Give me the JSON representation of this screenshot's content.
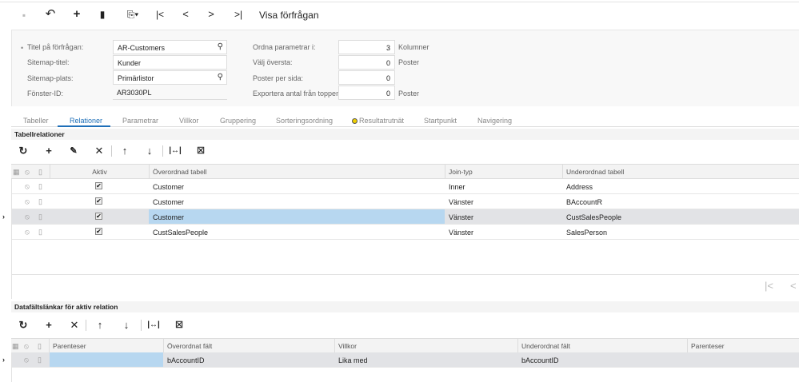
{
  "toolbar": {
    "buttons": [
      {
        "name": "save-icon",
        "glyph": "🖫",
        "disabled": true
      },
      {
        "name": "undo-icon",
        "glyph": "↶"
      },
      {
        "name": "add-icon",
        "glyph": "+"
      },
      {
        "name": "delete-icon",
        "glyph": "🗑"
      },
      {
        "name": "copy-paste-icon",
        "glyph": "⎘▾"
      },
      {
        "name": "first-record-icon",
        "glyph": "|<"
      },
      {
        "name": "previous-record-icon",
        "glyph": "<"
      },
      {
        "name": "next-record-icon",
        "glyph": ">"
      },
      {
        "name": "last-record-icon",
        "glyph": ">|"
      }
    ],
    "title": "Visa förfrågan"
  },
  "form": {
    "required_mark": "•",
    "title_label": "Titel på förfrågan:",
    "title_value": "AR-Customers",
    "sitemap_title_label": "Sitemap-titel:",
    "sitemap_title_value": "Kunder",
    "sitemap_location_label": "Sitemap-plats:",
    "sitemap_location_value": "Primärlistor",
    "screen_id_label": "Fönster-ID:",
    "screen_id_value": "AR3030PL",
    "arrange_label": "Ordna parametrar i:",
    "arrange_value": "3",
    "arrange_unit": "Kolumner",
    "select_top_label": "Välj översta:",
    "select_top_value": "0",
    "select_top_unit": "Poster",
    "per_page_label": "Poster per sida:",
    "per_page_value": "0",
    "export_label": "Exportera antal från toppen:",
    "export_value": "0",
    "export_unit": "Poster",
    "search_glyph": "⚲"
  },
  "tabs": [
    "Tabeller",
    "Relationer",
    "Parametrar",
    "Villkor",
    "Gruppering",
    "Sorteringsordning",
    "Resultatrutnät",
    "Startpunkt",
    "Navigering"
  ],
  "active_tab": "Relationer",
  "relations": {
    "title": "Tabellrelationer",
    "columns": [
      "Aktiv",
      "Överordnad tabell",
      "Join-typ",
      "Underordnad tabell"
    ],
    "rows": [
      {
        "active": true,
        "parent": "Customer",
        "join": "Inner",
        "child": "Address"
      },
      {
        "active": true,
        "parent": "Customer",
        "join": "Vänster",
        "child": "BAccountR"
      },
      {
        "active": true,
        "parent": "Customer",
        "join": "Vänster",
        "child": "CustSalesPeople",
        "selected": true
      },
      {
        "active": true,
        "parent": "CustSalesPeople",
        "join": "Vänster",
        "child": "SalesPerson"
      }
    ]
  },
  "links": {
    "title": "Datafältslänkar för aktiv relation",
    "columns": [
      "Parenteser",
      "Överordnat fält",
      "Villkor",
      "Underordnat fält",
      "Parenteser"
    ],
    "rows": [
      {
        "open_paren": "",
        "parent_field": "bAccountID",
        "condition": "Lika med",
        "child_field": "bAccountID",
        "close_paren": ""
      }
    ]
  },
  "colors": {
    "accent": "#1e6fb8",
    "selected_cell": "#b7d7f0",
    "selected_row": "#e2e3e6"
  }
}
